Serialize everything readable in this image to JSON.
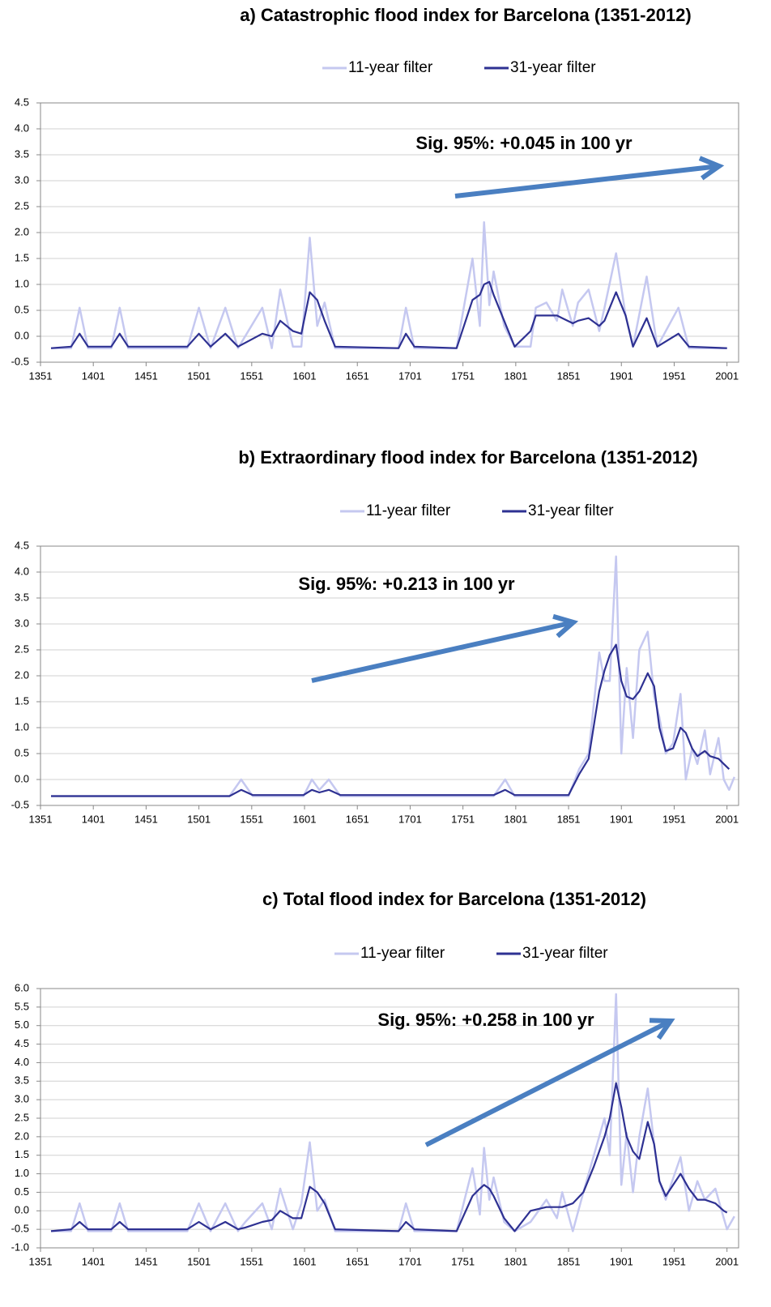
{
  "chart_data": [
    {
      "type": "line",
      "title": "a) Catastrophic flood index for Barcelona (1351-2012)",
      "annotation": "Sig. 95%: +0.045 in 100 yr",
      "x": [
        1361,
        1380,
        1388,
        1396,
        1418,
        1426,
        1434,
        1490,
        1501,
        1512,
        1526,
        1538,
        1561,
        1570,
        1578,
        1590,
        1598,
        1606,
        1613,
        1620,
        1630,
        1690,
        1697,
        1705,
        1745,
        1760,
        1767,
        1771,
        1776,
        1780,
        1790,
        1800,
        1815,
        1820,
        1830,
        1840,
        1845,
        1855,
        1860,
        1870,
        1880,
        1885,
        1896,
        1905,
        1912,
        1925,
        1935,
        1955,
        1965,
        2001
      ],
      "series": [
        {
          "name": "11-year filter",
          "color": "#c5c8f0",
          "values": [
            -0.23,
            -0.23,
            0.55,
            -0.23,
            -0.23,
            0.55,
            -0.23,
            -0.23,
            0.55,
            -0.23,
            0.55,
            -0.23,
            0.55,
            -0.23,
            0.9,
            -0.2,
            -0.2,
            1.9,
            0.2,
            0.65,
            -0.23,
            -0.23,
            0.55,
            -0.23,
            -0.23,
            1.5,
            0.2,
            2.2,
            0.6,
            1.25,
            0.2,
            -0.2,
            -0.2,
            0.55,
            0.65,
            0.3,
            0.9,
            0.2,
            0.65,
            0.9,
            0.1,
            0.55,
            1.6,
            0.4,
            -0.2,
            1.15,
            -0.2,
            0.55,
            -0.23,
            -0.23
          ]
        },
        {
          "name": "31-year filter",
          "color": "#2e3192",
          "values": [
            -0.23,
            -0.2,
            0.05,
            -0.2,
            -0.2,
            0.05,
            -0.2,
            -0.2,
            0.05,
            -0.2,
            0.05,
            -0.2,
            0.05,
            0.0,
            0.3,
            0.1,
            0.05,
            0.85,
            0.7,
            0.3,
            -0.2,
            -0.23,
            0.05,
            -0.2,
            -0.23,
            0.7,
            0.8,
            1.0,
            1.05,
            0.8,
            0.3,
            -0.2,
            0.1,
            0.4,
            0.4,
            0.4,
            0.35,
            0.25,
            0.3,
            0.35,
            0.2,
            0.3,
            0.85,
            0.4,
            -0.2,
            0.35,
            -0.2,
            0.05,
            -0.2,
            -0.23
          ]
        }
      ],
      "xlim": [
        1351,
        2012
      ],
      "xticks": [
        1351,
        1401,
        1451,
        1501,
        1551,
        1601,
        1651,
        1701,
        1751,
        1801,
        1851,
        1901,
        1951,
        2001
      ],
      "ylim": [
        -0.5,
        4.5
      ],
      "yticks": [
        -0.5,
        {
          "value": 0,
          "label": "0.0"
        },
        0.5,
        {
          "value": 1,
          "label": "1.0"
        },
        1.5,
        {
          "value": 2,
          "label": "2.0"
        },
        2.5,
        {
          "value": 3,
          "label": "3.0"
        },
        3.5,
        {
          "value": 4,
          "label": "4.0"
        },
        4.5
      ],
      "grid": true
    },
    {
      "type": "line",
      "title": "b) Extraordinary flood index for Barcelona (1351-2012)",
      "annotation": "Sig. 95%: +0.213 in 100 yr",
      "x": [
        1361,
        1530,
        1541,
        1552,
        1600,
        1608,
        1615,
        1624,
        1635,
        1780,
        1791,
        1800,
        1851,
        1861,
        1870,
        1880,
        1885,
        1890,
        1896,
        1901,
        1906,
        1912,
        1918,
        1926,
        1932,
        1937,
        1943,
        1950,
        1957,
        1962,
        1968,
        1973,
        1980,
        1985,
        1993,
        1998,
        2003,
        2008
      ],
      "series": [
        {
          "name": "11-year filter",
          "color": "#c5c8f0",
          "values": [
            -0.32,
            -0.32,
            0.0,
            -0.32,
            -0.32,
            0.0,
            -0.2,
            0.0,
            -0.32,
            -0.32,
            0.0,
            -0.32,
            -0.32,
            0.2,
            0.5,
            2.45,
            1.9,
            1.9,
            4.3,
            0.5,
            2.15,
            0.8,
            2.5,
            2.85,
            1.6,
            1.2,
            0.5,
            0.7,
            1.65,
            0.0,
            0.6,
            0.3,
            0.95,
            0.1,
            0.8,
            0.0,
            -0.2,
            0.05
          ]
        },
        {
          "name": "31-year filter",
          "color": "#2e3192",
          "values": [
            -0.32,
            -0.32,
            -0.2,
            -0.3,
            -0.3,
            -0.2,
            -0.25,
            -0.2,
            -0.3,
            -0.3,
            -0.2,
            -0.3,
            -0.3,
            0.1,
            0.4,
            1.7,
            2.1,
            2.4,
            2.6,
            1.9,
            1.6,
            1.55,
            1.7,
            2.05,
            1.8,
            1.0,
            0.55,
            0.6,
            1.0,
            0.9,
            0.6,
            0.45,
            0.55,
            0.45,
            0.4,
            0.3,
            0.2,
            null
          ]
        }
      ],
      "xlim": [
        1351,
        2012
      ],
      "xticks": [
        1351,
        1401,
        1451,
        1501,
        1551,
        1601,
        1651,
        1701,
        1751,
        1801,
        1851,
        1901,
        1951,
        2001
      ],
      "ylim": [
        -0.5,
        4.5
      ],
      "yticks": [
        -0.5,
        {
          "value": 0,
          "label": "0.0"
        },
        0.5,
        {
          "value": 1,
          "label": "1.0"
        },
        1.5,
        {
          "value": 2,
          "label": "2.0"
        },
        2.5,
        {
          "value": 3,
          "label": "3.0"
        },
        3.5,
        {
          "value": 4,
          "label": "4.0"
        },
        4.5
      ],
      "grid": true
    },
    {
      "type": "line",
      "title": "c) Total flood index for Barcelona (1351-2012)",
      "annotation": "Sig. 95%: +0.258 in 100 yr",
      "x": [
        1361,
        1380,
        1388,
        1396,
        1418,
        1426,
        1434,
        1490,
        1501,
        1512,
        1526,
        1538,
        1545,
        1561,
        1570,
        1578,
        1590,
        1598,
        1606,
        1613,
        1620,
        1630,
        1690,
        1697,
        1705,
        1745,
        1760,
        1767,
        1771,
        1776,
        1780,
        1790,
        1800,
        1815,
        1830,
        1840,
        1845,
        1855,
        1865,
        1875,
        1885,
        1890,
        1896,
        1901,
        1906,
        1912,
        1918,
        1926,
        1932,
        1937,
        1943,
        1957,
        1965,
        1973,
        1980,
        1990,
        1998,
        2001,
        2008
      ],
      "series": [
        {
          "name": "11-year filter",
          "color": "#c5c8f0",
          "values": [
            -0.55,
            -0.55,
            0.2,
            -0.55,
            -0.55,
            0.2,
            -0.55,
            -0.55,
            0.2,
            -0.55,
            0.2,
            -0.55,
            -0.3,
            0.2,
            -0.5,
            0.6,
            -0.5,
            0.2,
            1.85,
            0.0,
            0.3,
            -0.55,
            -0.55,
            0.2,
            -0.55,
            -0.55,
            1.15,
            -0.1,
            1.7,
            0.3,
            0.9,
            -0.3,
            -0.55,
            -0.3,
            0.3,
            -0.2,
            0.5,
            -0.55,
            0.5,
            1.5,
            2.5,
            1.5,
            5.85,
            0.7,
            2.1,
            0.5,
            2.0,
            3.3,
            1.8,
            0.8,
            0.3,
            1.45,
            0.0,
            0.8,
            0.3,
            0.6,
            -0.2,
            -0.5,
            -0.15
          ]
        },
        {
          "name": "31-year filter",
          "color": "#2e3192",
          "values": [
            -0.55,
            -0.5,
            -0.3,
            -0.5,
            -0.5,
            -0.3,
            -0.5,
            -0.5,
            -0.3,
            -0.5,
            -0.3,
            -0.5,
            -0.45,
            -0.3,
            -0.25,
            0.0,
            -0.2,
            -0.2,
            0.65,
            0.5,
            0.2,
            -0.5,
            -0.55,
            -0.3,
            -0.5,
            -0.55,
            0.4,
            0.6,
            0.7,
            0.6,
            0.4,
            -0.2,
            -0.55,
            0.0,
            0.1,
            0.1,
            0.1,
            0.2,
            0.5,
            1.2,
            2.0,
            2.5,
            3.45,
            2.8,
            2.0,
            1.6,
            1.4,
            2.4,
            1.8,
            0.8,
            0.4,
            1.0,
            0.6,
            0.3,
            0.3,
            0.2,
            0.0,
            -0.05,
            null
          ]
        }
      ],
      "xlim": [
        1351,
        2012
      ],
      "xticks": [
        1351,
        1401,
        1451,
        1501,
        1551,
        1601,
        1651,
        1701,
        1751,
        1801,
        1851,
        1901,
        1951,
        2001
      ],
      "ylim": [
        -1,
        6
      ],
      "yticks": [
        {
          "value": -1,
          "label": "-1.0"
        },
        -0.5,
        {
          "value": 0,
          "label": "0.0"
        },
        0.5,
        {
          "value": 1,
          "label": "1.0"
        },
        1.5,
        {
          "value": 2,
          "label": "2.0"
        },
        2.5,
        {
          "value": 3,
          "label": "3.0"
        },
        3.5,
        {
          "value": 4,
          "label": "4.0"
        },
        4.5,
        {
          "value": 5,
          "label": "5.0"
        },
        5.5,
        {
          "value": 6,
          "label": "6.0"
        }
      ],
      "grid": true
    }
  ]
}
